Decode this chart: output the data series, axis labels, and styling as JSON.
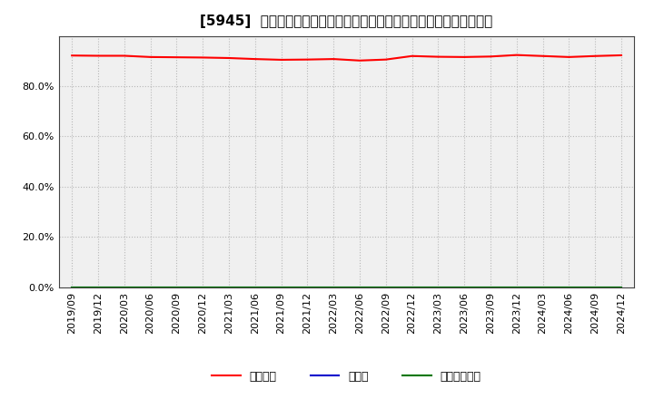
{
  "title": "[5945]  自己資本、のれん、繰延税金資産の総資産に対する比率の推移",
  "x_labels": [
    "2019/09",
    "2019/12",
    "2020/03",
    "2020/06",
    "2020/09",
    "2020/12",
    "2021/03",
    "2021/06",
    "2021/09",
    "2021/12",
    "2022/03",
    "2022/06",
    "2022/09",
    "2022/12",
    "2023/03",
    "2023/06",
    "2023/09",
    "2023/12",
    "2024/03",
    "2024/06",
    "2024/09",
    "2024/12"
  ],
  "jikoshihon": [
    0.922,
    0.921,
    0.921,
    0.916,
    0.915,
    0.914,
    0.912,
    0.908,
    0.905,
    0.906,
    0.908,
    0.902,
    0.906,
    0.92,
    0.917,
    0.916,
    0.918,
    0.924,
    0.92,
    0.916,
    0.92,
    0.923
  ],
  "noren": [
    0.0,
    0.0,
    0.0,
    0.0,
    0.0,
    0.0,
    0.0,
    0.0,
    0.0,
    0.0,
    0.0,
    0.0,
    0.0,
    0.0,
    0.0,
    0.0,
    0.0,
    0.0,
    0.0,
    0.0,
    0.0,
    0.0
  ],
  "kuenzetsu": [
    0.0,
    0.0,
    0.0,
    0.0,
    0.0,
    0.0,
    0.0,
    0.0,
    0.0,
    0.0,
    0.0,
    0.0,
    0.0,
    0.0,
    0.0,
    0.0,
    0.0,
    0.0,
    0.0,
    0.0,
    0.0,
    0.0
  ],
  "line_color_jikoshihon": "#ff0000",
  "line_color_noren": "#0000cc",
  "line_color_kuenzetsu": "#007700",
  "ylim": [
    0.0,
    1.0
  ],
  "yticks": [
    0.0,
    0.2,
    0.4,
    0.6,
    0.8
  ],
  "background_color": "#ffffff",
  "plot_bg_color": "#f0f0f0",
  "grid_color": "#aaaaaa",
  "legend_labels": [
    "自己資本",
    "のれん",
    "繰延税金資産"
  ],
  "title_fontsize": 11,
  "tick_fontsize": 8,
  "legend_fontsize": 9
}
